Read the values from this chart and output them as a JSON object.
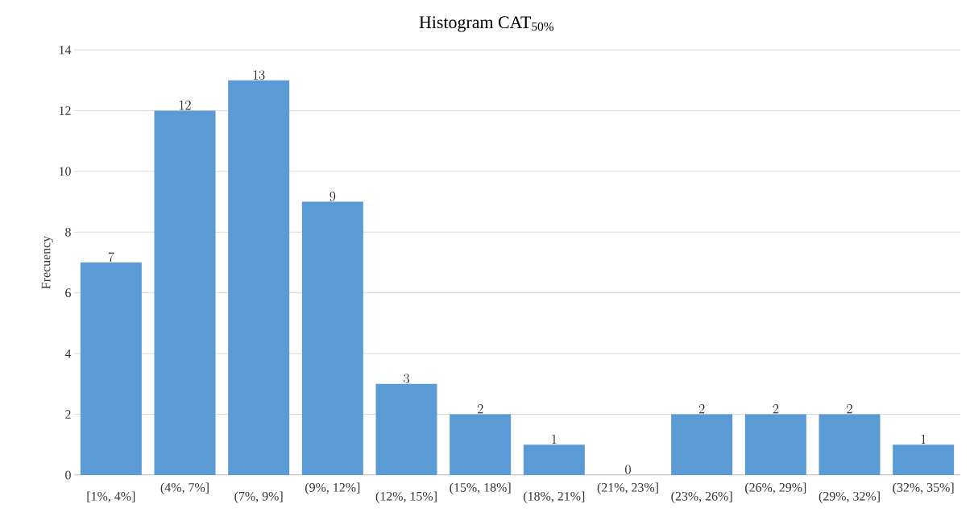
{
  "chart_data": {
    "type": "bar",
    "title": "Histogram CAT$_{50%}$",
    "ylabel": "Frecuency",
    "categories": [
      "[1%, 4%]",
      "(4%, 7%]",
      "(7%, 9%]",
      "(9%, 12%]",
      "(12%, 15%]",
      "(15%, 18%]",
      "(18%, 21%]",
      "(21%, 23%]",
      "(23%, 26%]",
      "(26%, 29%]",
      "(29%, 32%]",
      "(32%, 35%]"
    ],
    "values": [
      7,
      12,
      13,
      9,
      3,
      2,
      1,
      0,
      2,
      2,
      2,
      1
    ],
    "color": "#5b9bd5",
    "ylim": [
      0,
      14
    ],
    "yticks": [
      0,
      2,
      4,
      6,
      8,
      10,
      12,
      14
    ],
    "grid": "y",
    "data_labels": true
  }
}
